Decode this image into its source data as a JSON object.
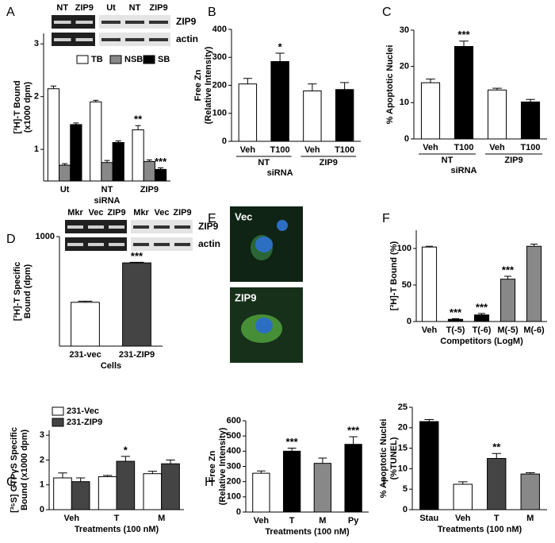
{
  "chart_data": [
    {
      "type": "bar",
      "panel": "A",
      "categories": [
        "Ut",
        "NT",
        "ZIP9"
      ],
      "xlabel": "siRNA",
      "ylabel": [
        "[³H]-T Bound",
        "(x1000 dpm)"
      ],
      "ylim": [
        0.4,
        3.2
      ],
      "yticks": [
        1,
        2,
        3
      ],
      "legend": "upper right",
      "series": [
        {
          "name": "TB",
          "color": "#ffffff",
          "values": [
            2.15,
            1.9,
            1.37
          ],
          "errors": [
            0.05,
            0.03,
            0.08
          ],
          "significance": [
            null,
            null,
            "**"
          ]
        },
        {
          "name": "NSB",
          "color": "#888888",
          "values": [
            0.7,
            0.75,
            0.77
          ],
          "errors": [
            0.03,
            0.04,
            0.03
          ],
          "significance": [
            null,
            null,
            null
          ]
        },
        {
          "name": "SB",
          "color": "#000000",
          "values": [
            1.47,
            1.13,
            0.62
          ],
          "errors": [
            0.03,
            0.03,
            0.03
          ],
          "significance": [
            null,
            null,
            "***"
          ]
        }
      ],
      "gel": {
        "lanes": [
          [
            "NT",
            "ZIP9"
          ],
          [
            "Ut",
            "NT",
            "ZIP9"
          ]
        ],
        "rows": [
          "ZIP9",
          "actin"
        ]
      }
    },
    {
      "type": "bar",
      "panel": "B",
      "categories": [
        "Veh",
        "T100",
        "Veh",
        "T100"
      ],
      "groups": [
        "NT",
        "ZIP9"
      ],
      "xlabel": "siRNA",
      "ylabel": [
        "Free Zn",
        "(Relative Intensity)"
      ],
      "ylim": [
        0,
        400
      ],
      "yticks": [
        0,
        100,
        200,
        300,
        400
      ],
      "values": [
        205,
        285,
        180,
        185
      ],
      "errors": [
        20,
        30,
        25,
        25
      ],
      "colors": [
        "#ffffff",
        "#000000",
        "#ffffff",
        "#000000"
      ],
      "significance": [
        null,
        "*",
        null,
        null
      ]
    },
    {
      "type": "bar",
      "panel": "C",
      "categories": [
        "Veh",
        "T100",
        "Veh",
        "T100"
      ],
      "groups": [
        "NT",
        "ZIP9"
      ],
      "xlabel": "siRNA",
      "ylabel": [
        "% Apoptotic Nuclei"
      ],
      "ylim": [
        0,
        30
      ],
      "yticks": [
        0,
        10,
        20,
        30
      ],
      "values": [
        15.5,
        25.5,
        13.5,
        10.2
      ],
      "errors": [
        1,
        1.5,
        0.5,
        0.7
      ],
      "colors": [
        "#ffffff",
        "#000000",
        "#ffffff",
        "#000000"
      ],
      "significance": [
        null,
        "***",
        null,
        null
      ]
    },
    {
      "type": "bar",
      "panel": "D",
      "categories": [
        "231-vec",
        "231-ZIP9"
      ],
      "xlabel": "Cells",
      "ylabel": [
        "[³H]-T Specific",
        "Bound (dpm)"
      ],
      "ylim": [
        0,
        1000
      ],
      "yticks": [
        1000
      ],
      "values": [
        400,
        760
      ],
      "errors": [
        10,
        5
      ],
      "colors": [
        "#ffffff",
        "#444444"
      ],
      "significance": [
        null,
        "***"
      ],
      "gel": {
        "lanes": [
          [
            "Mkr",
            "Vec",
            "ZIP9"
          ],
          [
            "Mkr",
            "Vec",
            "ZIP9"
          ]
        ],
        "rows": [
          "ZIP9",
          "actin"
        ]
      }
    },
    {
      "type": "image",
      "panel": "E",
      "labels": [
        "Vec",
        "ZIP9"
      ]
    },
    {
      "type": "bar",
      "panel": "F",
      "categories": [
        "Veh",
        "T(-5)",
        "T(-6)",
        "M(-5)",
        "M(-6)"
      ],
      "xlabel": "Competitors (LogM)",
      "ylabel": [
        "[³H]-T Bound (%)"
      ],
      "ylim": [
        0,
        125
      ],
      "yticks": [
        0,
        50,
        100
      ],
      "values": [
        102,
        3,
        9,
        58,
        103
      ],
      "errors": [
        1,
        1,
        2,
        4,
        3
      ],
      "colors": [
        "#ffffff",
        "#000000",
        "#000000",
        "#888888",
        "#888888"
      ],
      "significance": [
        null,
        "***",
        "***",
        "***",
        null
      ]
    },
    {
      "type": "bar",
      "panel": "G",
      "categories": [
        "Veh",
        "T",
        "M"
      ],
      "xlabel": "Treatments (100 nM)",
      "ylabel": [
        "[³⁵S] GTPγS Specific",
        "Bound (x1000 dpm)"
      ],
      "ylim": [
        0,
        3.2
      ],
      "yticks": [
        0,
        1,
        2,
        3
      ],
      "legend": "upper left",
      "series": [
        {
          "name": "231-Vec",
          "color": "#ffffff",
          "values": [
            1.28,
            1.33,
            1.45
          ],
          "errors": [
            0.2,
            0.05,
            0.1
          ],
          "significance": [
            null,
            null,
            null
          ]
        },
        {
          "name": "231-ZIP9",
          "color": "#444444",
          "values": [
            1.13,
            1.95,
            1.85
          ],
          "errors": [
            0.15,
            0.2,
            0.15
          ],
          "significance": [
            null,
            "*",
            null
          ]
        }
      ]
    },
    {
      "type": "bar",
      "panel": "H",
      "categories": [
        "Veh",
        "T",
        "M",
        "Py"
      ],
      "xlabel": "Treatments (100 nM)",
      "ylabel": [
        "Free Zn",
        "(Relative Intensity)"
      ],
      "ylim": [
        0,
        600
      ],
      "yticks": [
        0,
        100,
        200,
        300,
        400,
        500,
        600
      ],
      "values": [
        255,
        400,
        320,
        445
      ],
      "errors": [
        15,
        20,
        35,
        50
      ],
      "colors": [
        "#ffffff",
        "#000000",
        "#888888",
        "#000000"
      ],
      "significance": [
        null,
        "***",
        null,
        "***"
      ]
    },
    {
      "type": "bar",
      "panel": "I",
      "categories": [
        "Stau",
        "Veh",
        "T",
        "M"
      ],
      "xlabel": "Treatments (100 nM)",
      "ylabel": [
        "% Apoptotic Nuclei",
        "(%TUNEL)"
      ],
      "ylim": [
        0,
        25
      ],
      "yticks": [
        0,
        5,
        10,
        15,
        20,
        25
      ],
      "values": [
        21.5,
        6.2,
        12.5,
        8.7
      ],
      "errors": [
        0.5,
        0.6,
        1.2,
        0.3
      ],
      "colors": [
        "#000000",
        "#ffffff",
        "#444444",
        "#888888"
      ],
      "significance": [
        null,
        null,
        "**",
        null
      ]
    }
  ]
}
